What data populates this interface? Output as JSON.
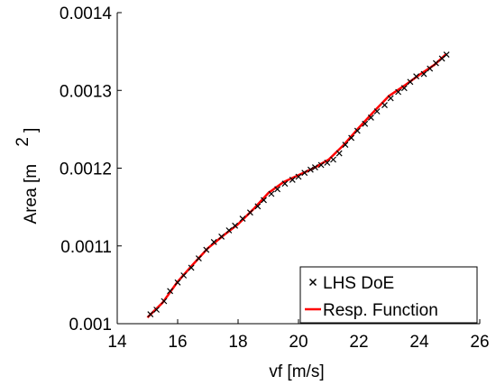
{
  "chart_data": {
    "type": "line",
    "xlabel": "vf [m/s]",
    "ylabel_prefix": "Area [m",
    "ylabel_superscript": "2",
    "ylabel_suffix": "]",
    "xlim": [
      14,
      26
    ],
    "ylim": [
      0.001,
      0.0014
    ],
    "xticks": [
      14,
      16,
      18,
      20,
      22,
      24,
      26
    ],
    "xtick_labels": [
      "14",
      "16",
      "18",
      "20",
      "22",
      "24",
      "26"
    ],
    "yticks": [
      0.001,
      0.0011,
      0.0012,
      0.0013,
      0.0014
    ],
    "ytick_labels": [
      "0.001",
      "0.0011",
      "0.0012",
      "0.0013",
      "0.0014"
    ],
    "grid": false,
    "legend_position": "bottom-right",
    "series": [
      {
        "name": "LHS DoE",
        "style": "marker",
        "marker": "x",
        "color": "#000000",
        "x": [
          15.1,
          15.3,
          15.55,
          15.75,
          16.0,
          16.2,
          16.45,
          16.7,
          16.95,
          17.2,
          17.45,
          17.7,
          17.9,
          18.15,
          18.4,
          18.65,
          18.85,
          19.1,
          19.3,
          19.55,
          19.8,
          20.0,
          20.2,
          20.4,
          20.55,
          20.75,
          20.95,
          21.15,
          21.35,
          21.55,
          21.75,
          21.95,
          22.2,
          22.4,
          22.6,
          22.85,
          23.05,
          23.3,
          23.5,
          23.7,
          23.9,
          24.15,
          24.35,
          24.55,
          24.75,
          24.9
        ],
        "y": [
          0.001012,
          0.001018,
          0.001029,
          0.001042,
          0.001053,
          0.001062,
          0.001072,
          0.001084,
          0.001095,
          0.001105,
          0.001112,
          0.00112,
          0.001126,
          0.001135,
          0.001143,
          0.001151,
          0.001159,
          0.001167,
          0.001173,
          0.00118,
          0.001185,
          0.001189,
          0.001194,
          0.001198,
          0.001201,
          0.001204,
          0.001207,
          0.001211,
          0.001219,
          0.00123,
          0.001239,
          0.001248,
          0.001257,
          0.001265,
          0.001273,
          0.001281,
          0.00129,
          0.001298,
          0.001303,
          0.001311,
          0.001318,
          0.001321,
          0.001328,
          0.001335,
          0.001341,
          0.001346
        ]
      },
      {
        "name": "Resp. Function",
        "style": "line",
        "color": "#ff0000",
        "x": [
          15.0,
          15.5,
          16.0,
          16.5,
          17.0,
          17.5,
          18.0,
          18.5,
          19.0,
          19.5,
          20.0,
          20.5,
          21.0,
          21.5,
          22.0,
          22.5,
          23.0,
          23.5,
          24.0,
          24.5,
          24.9
        ],
        "y": [
          0.001008,
          0.001027,
          0.001054,
          0.001076,
          0.001097,
          0.001113,
          0.001128,
          0.001147,
          0.001168,
          0.001182,
          0.001191,
          0.0012,
          0.001211,
          0.00123,
          0.001252,
          0.001273,
          0.001293,
          0.001306,
          0.00132,
          0.001333,
          0.001347
        ]
      }
    ]
  }
}
